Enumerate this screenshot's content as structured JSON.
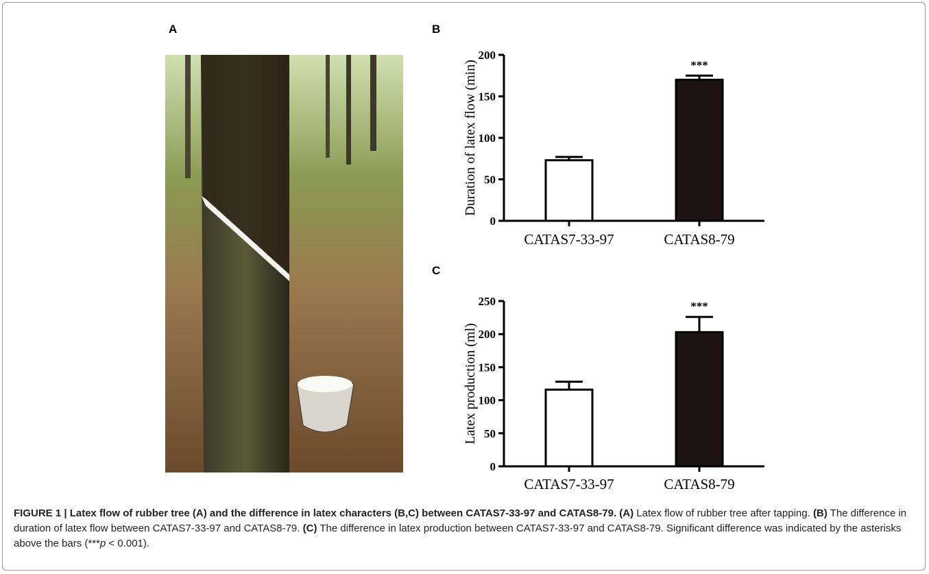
{
  "photo_panel_label": "A",
  "chart_data": [
    {
      "type": "bar",
      "panel_label": "B",
      "y_label": "Duration of latex flow (min)",
      "categories": [
        "CATAS7-33-97",
        "CATAS8-79"
      ],
      "values": [
        73,
        170
      ],
      "errors": [
        4,
        5
      ],
      "colors": [
        "#ffffff",
        "#1c1312"
      ],
      "ylim": [
        0,
        200
      ],
      "yticks": [
        0,
        50,
        100,
        150,
        200
      ],
      "annotations": [
        {
          "text": "***",
          "category": "CATAS8-79"
        }
      ]
    },
    {
      "type": "bar",
      "panel_label": "C",
      "y_label": "Latex production (ml)",
      "categories": [
        "CATAS7-33-97",
        "CATAS8-79"
      ],
      "values": [
        116,
        203
      ],
      "errors": [
        12,
        23
      ],
      "colors": [
        "#ffffff",
        "#1c1312"
      ],
      "ylim": [
        0,
        250
      ],
      "yticks": [
        0,
        50,
        100,
        150,
        200,
        250
      ],
      "annotations": [
        {
          "text": "***",
          "category": "CATAS8-79"
        }
      ]
    }
  ],
  "caption": [
    {
      "text": "FIGURE 1 | Latex flow of rubber tree (A) and the difference in latex characters (B,C) between CATAS7-33-97 and CATAS8-79.",
      "style": "bold"
    },
    {
      "text": " ",
      "style": "normal"
    },
    {
      "text": "(A)",
      "style": "bold"
    },
    {
      "text": " Latex flow of rubber tree after tapping. ",
      "style": "normal"
    },
    {
      "text": "(B)",
      "style": "bold"
    },
    {
      "text": " The difference in duration of latex flow between CATAS7-33-97 and CATAS8-79. ",
      "style": "normal"
    },
    {
      "text": "(C)",
      "style": "bold"
    },
    {
      "text": " The difference in latex production between CATAS7-33-97 and CATAS8-79. Significant difference was indicated by the asterisks above the bars (***",
      "style": "normal"
    },
    {
      "text": "p",
      "style": "italic"
    },
    {
      "text": " < 0.001).",
      "style": "normal"
    }
  ]
}
